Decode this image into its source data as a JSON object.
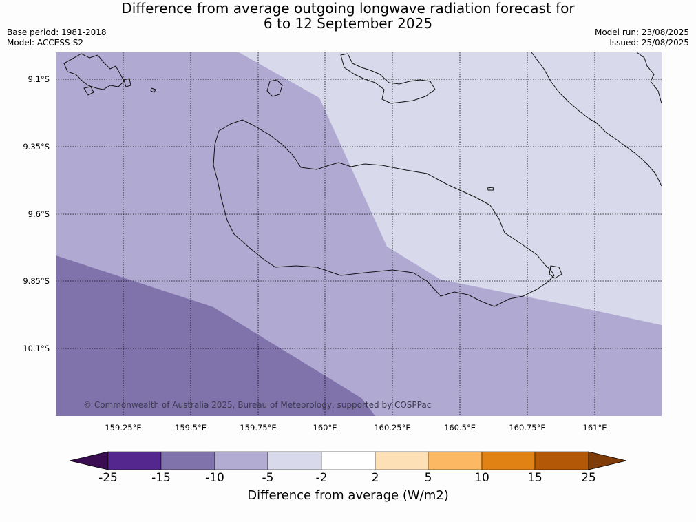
{
  "title": {
    "line1": "Difference from average outgoing longwave radiation forecast for",
    "line2": "6 to 12 September 2025"
  },
  "meta": {
    "base_period": "Base period: 1981-2018",
    "model": "Model: ACCESS-S2",
    "model_run": "Model run: 23/08/2025",
    "issued": "Issued: 25/08/2025"
  },
  "map": {
    "lat_labels": [
      "9.1°S",
      "9.35°S",
      "9.6°S",
      "9.85°S",
      "10.1°S"
    ],
    "lon_labels": [
      "159.25°E",
      "159.5°E",
      "159.75°E",
      "160°E",
      "160.25°E",
      "160.5°E",
      "160.75°E",
      "161°E"
    ],
    "copyright": "© Commonwealth of Australia 2025, Bureau of Meteorology, supported by COSPPac",
    "region_categories": {
      "light": "-5 to -2",
      "medium": "-10 to -5",
      "dark": "-15 to -10"
    }
  },
  "colorbar": {
    "title": "Difference from average (W/m2)",
    "ticks": [
      "-25",
      "-15",
      "-10",
      "-5",
      "-2",
      "2",
      "5",
      "10",
      "15",
      "25"
    ],
    "colors": [
      "#3a0c52",
      "#54278f",
      "#8073ac",
      "#b2abd2",
      "#d8daeb",
      "#ffffff",
      "#fee0b6",
      "#fdb863",
      "#e08214",
      "#b35806",
      "#7f3b08"
    ]
  }
}
